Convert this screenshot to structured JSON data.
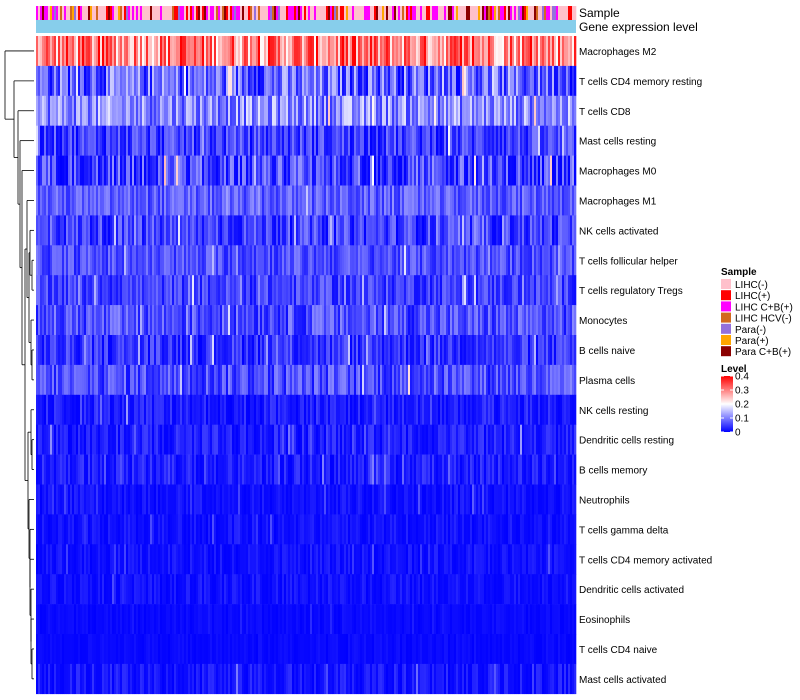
{
  "chart_data": {
    "type": "heatmap",
    "title": "",
    "annotation_tracks": [
      "Sample",
      "Gene expression level"
    ],
    "rows": [
      {
        "name": "Macrophages M2",
        "mean": 0.3,
        "spread": 0.1
      },
      {
        "name": "T cells CD4 memory resting",
        "mean": 0.08,
        "spread": 0.08
      },
      {
        "name": "T cells CD8",
        "mean": 0.11,
        "spread": 0.07
      },
      {
        "name": "Mast cells resting",
        "mean": 0.05,
        "spread": 0.05
      },
      {
        "name": "Macrophages M0",
        "mean": 0.04,
        "spread": 0.08
      },
      {
        "name": "Macrophages M1",
        "mean": 0.07,
        "spread": 0.04
      },
      {
        "name": "NK cells activated",
        "mean": 0.05,
        "spread": 0.05
      },
      {
        "name": "T cells follicular helper",
        "mean": 0.06,
        "spread": 0.04
      },
      {
        "name": "T cells regulatory  Tregs",
        "mean": 0.05,
        "spread": 0.04
      },
      {
        "name": "Monocytes",
        "mean": 0.06,
        "spread": 0.05
      },
      {
        "name": "B cells naive",
        "mean": 0.04,
        "spread": 0.04
      },
      {
        "name": "Plasma cells",
        "mean": 0.06,
        "spread": 0.05
      },
      {
        "name": "NK cells resting",
        "mean": 0.02,
        "spread": 0.03
      },
      {
        "name": "Dendritic cells resting",
        "mean": 0.02,
        "spread": 0.03
      },
      {
        "name": "B cells memory",
        "mean": 0.02,
        "spread": 0.03
      },
      {
        "name": "Neutrophils",
        "mean": 0.01,
        "spread": 0.02
      },
      {
        "name": "T cells gamma delta",
        "mean": 0.01,
        "spread": 0.02
      },
      {
        "name": "T cells CD4 memory activated",
        "mean": 0.01,
        "spread": 0.02
      },
      {
        "name": "Dendritic cells activated",
        "mean": 0.01,
        "spread": 0.02
      },
      {
        "name": "Eosinophils",
        "mean": 0.005,
        "spread": 0.01
      },
      {
        "name": "T cells CD4 naive",
        "mean": 0.005,
        "spread": 0.01
      },
      {
        "name": "Mast cells activated",
        "mean": 0.01,
        "spread": 0.03
      }
    ],
    "n_samples": 270,
    "sample_groups": [
      {
        "name": "LIHC(-)",
        "color": "#ffc0cb",
        "weight": 0.45
      },
      {
        "name": "LIHC(+)",
        "color": "#ff0000",
        "weight": 0.12
      },
      {
        "name": "LIHC C+B(+)",
        "color": "#ff00ff",
        "weight": 0.2
      },
      {
        "name": "LIHC HCV(-)",
        "color": "#d2691e",
        "weight": 0.05
      },
      {
        "name": "Para(-)",
        "color": "#9370db",
        "weight": 0.05
      },
      {
        "name": "Para(+)",
        "color": "#ffa500",
        "weight": 0.03
      },
      {
        "name": "Para C+B(+)",
        "color": "#8b0000",
        "weight": 0.1
      }
    ],
    "gene_expression_level_color": "#87ceeb",
    "level_legend": {
      "title": "Level",
      "ticks": [
        "0.4",
        "0.3",
        "0.2",
        "0.1",
        "0"
      ],
      "range": [
        0,
        0.4
      ],
      "colors": [
        "#0000ff",
        "#ffffff",
        "#ff0000"
      ]
    },
    "sample_legend_title": "Sample"
  }
}
